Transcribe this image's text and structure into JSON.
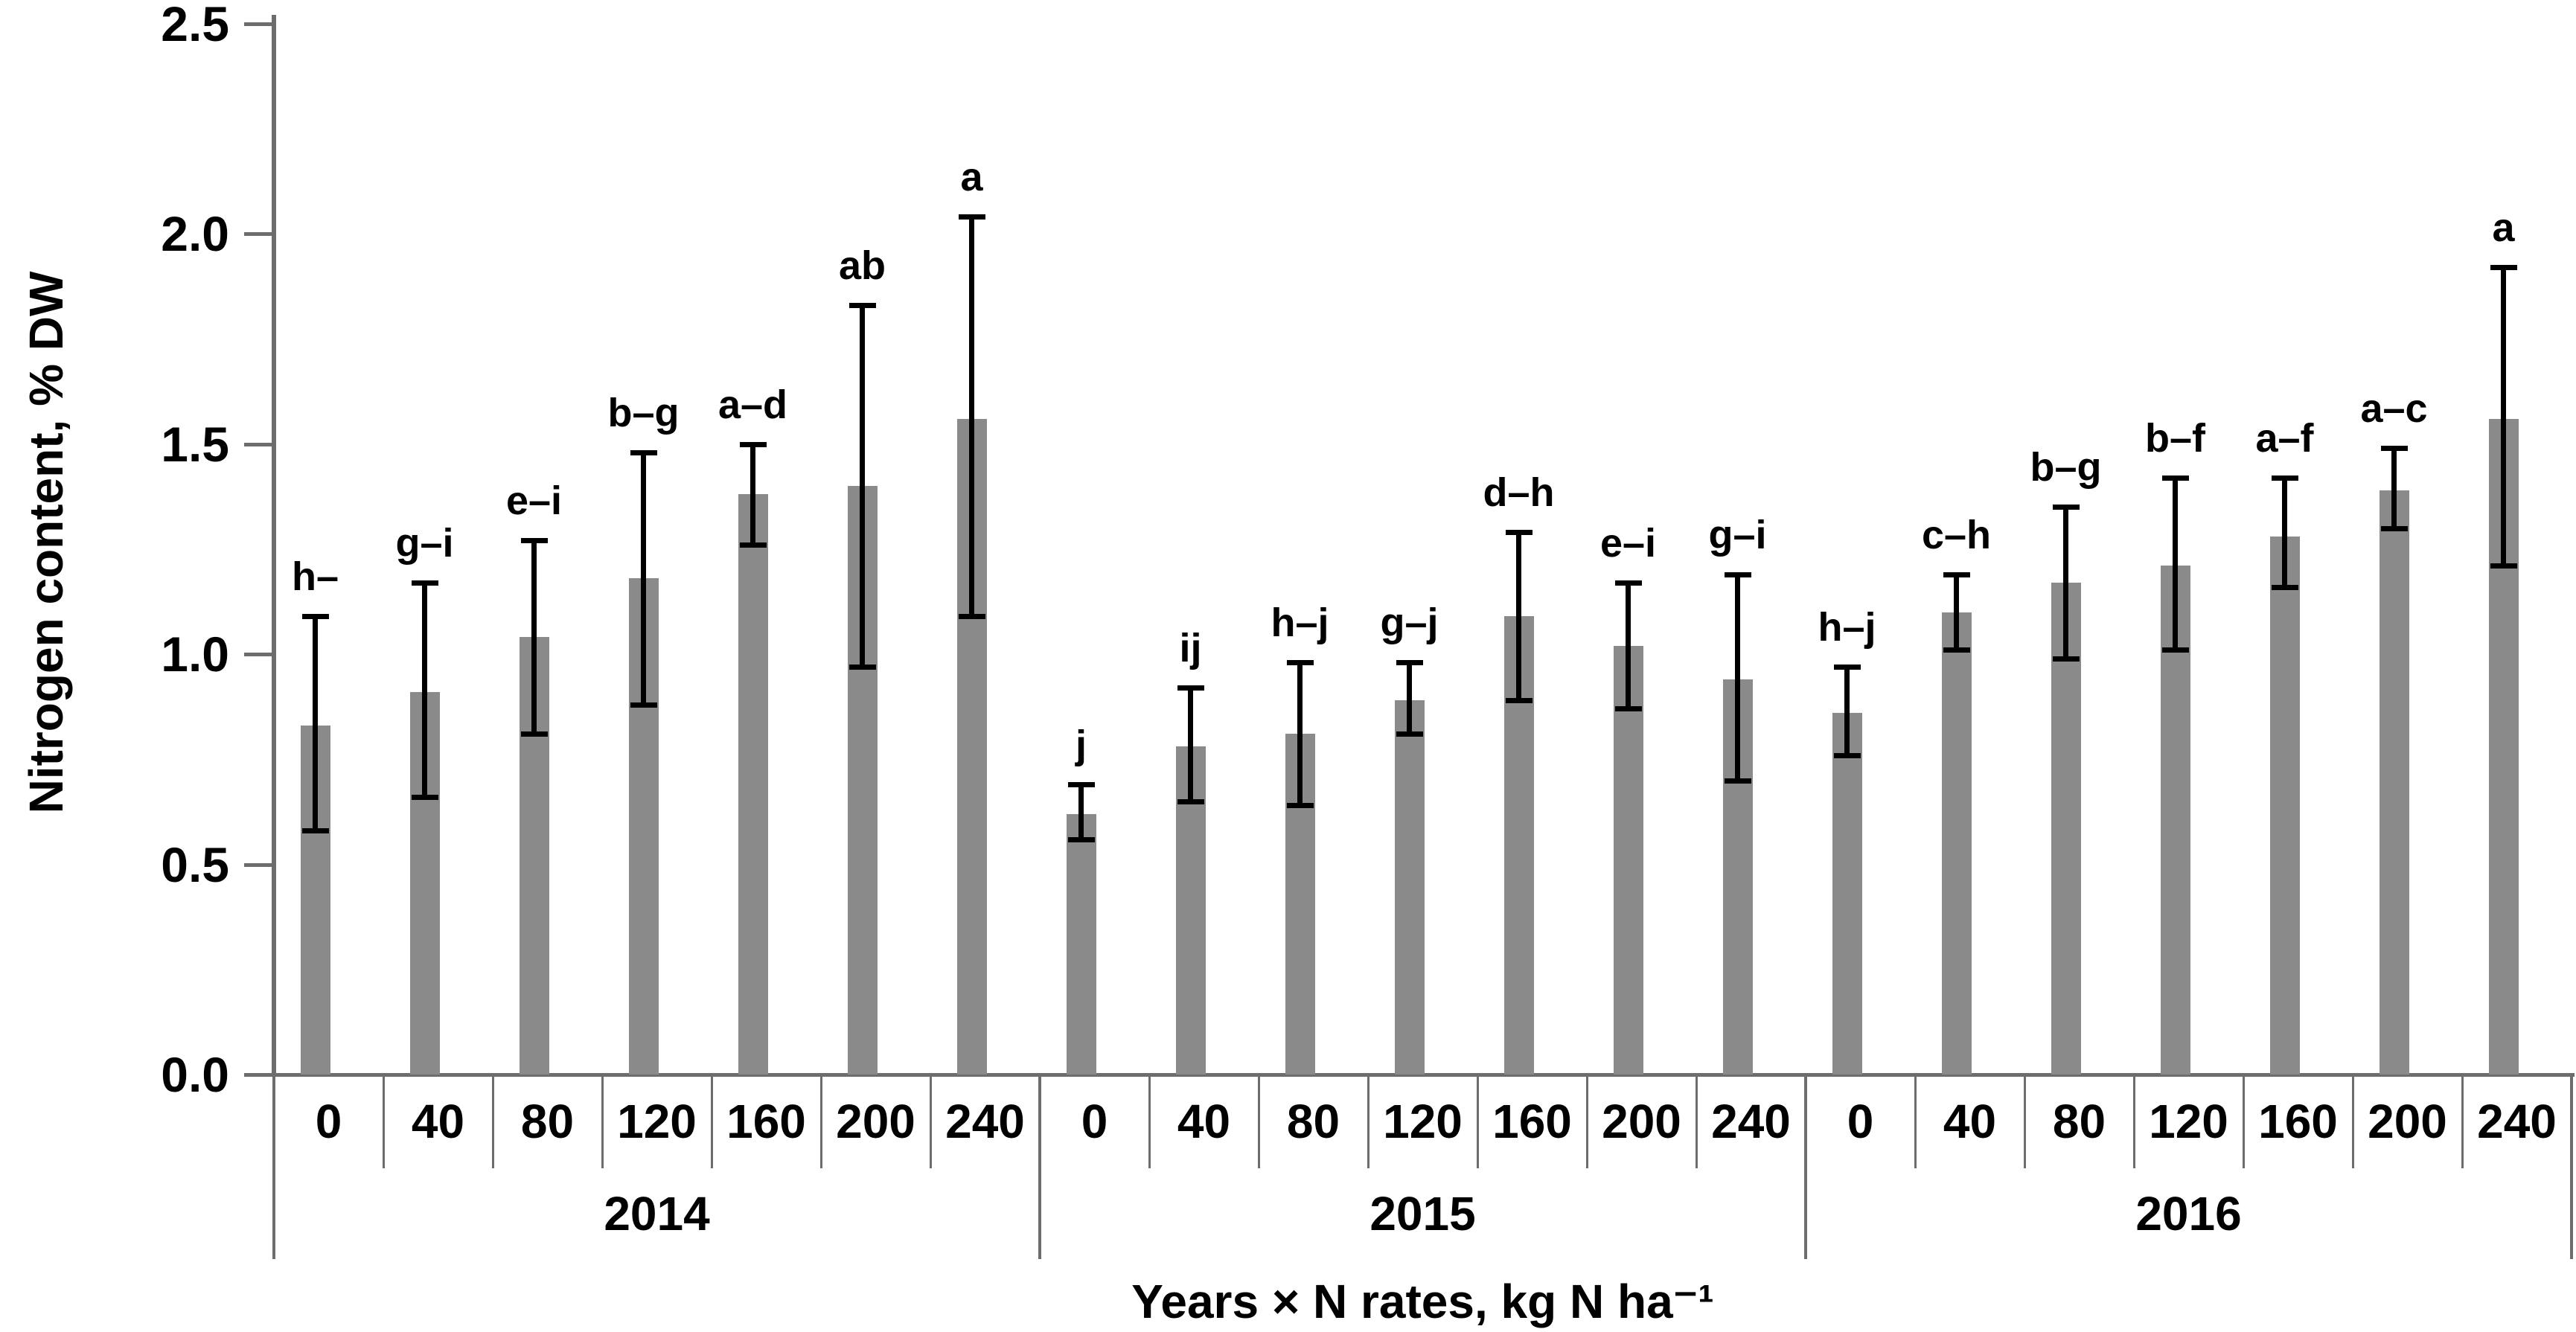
{
  "figure": {
    "background": "#ffffff",
    "bar_color": "#8a8a8a",
    "axis_color": "#6d6d6d",
    "error_bar_color": "#000000",
    "text_color": "#000000"
  },
  "y_axis": {
    "title": "Nitrogen content, % DW",
    "tick_labels": [
      "0.0",
      "0.5",
      "1.0",
      "1.5",
      "2.0",
      "2.5"
    ],
    "min": 0.0,
    "max": 2.5,
    "step": 0.5
  },
  "x_axis": {
    "title": "Years × N rates, kg N ha⁻¹",
    "rate_labels": [
      "0",
      "40",
      "80",
      "120",
      "160",
      "200",
      "240"
    ],
    "year_labels": [
      "2014",
      "2015",
      "2016"
    ]
  },
  "chart_data": {
    "type": "bar",
    "title": "",
    "xlabel": "Years × N rates, kg N ha⁻¹",
    "ylabel": "Nitrogen content, % DW",
    "ylim": [
      0.0,
      2.5
    ],
    "grid": false,
    "legend": false,
    "error_bars": true,
    "categories": [
      0,
      40,
      80,
      120,
      160,
      200,
      240
    ],
    "groups": [
      {
        "year": "2014",
        "values": [
          0.83,
          0.91,
          1.04,
          1.18,
          1.38,
          1.4,
          1.56
        ],
        "err_up": [
          0.26,
          0.26,
          0.23,
          0.3,
          0.12,
          0.43,
          0.48
        ],
        "err_down": [
          0.25,
          0.25,
          0.23,
          0.3,
          0.12,
          0.43,
          0.47
        ],
        "letters": [
          "h–",
          "g–i",
          "e–i",
          "b–g",
          "a–d",
          "ab",
          "a"
        ]
      },
      {
        "year": "2015",
        "values": [
          0.62,
          0.78,
          0.81,
          0.89,
          1.09,
          1.02,
          0.94
        ],
        "err_up": [
          0.07,
          0.14,
          0.17,
          0.09,
          0.2,
          0.15,
          0.25
        ],
        "err_down": [
          0.06,
          0.13,
          0.17,
          0.08,
          0.2,
          0.15,
          0.24
        ],
        "letters": [
          "j",
          "ij",
          "h–j",
          "g–j",
          "d–h",
          "e–i",
          "g–i"
        ]
      },
      {
        "year": "2016",
        "values": [
          0.86,
          1.1,
          1.17,
          1.21,
          1.28,
          1.39,
          1.56
        ],
        "err_up": [
          0.11,
          0.09,
          0.18,
          0.21,
          0.14,
          0.1,
          0.36
        ],
        "err_down": [
          0.1,
          0.09,
          0.18,
          0.2,
          0.12,
          0.09,
          0.35
        ],
        "letters": [
          "h–j",
          "c–h",
          "b–g",
          "b–f",
          "a–f",
          "a–c",
          "a"
        ]
      }
    ]
  }
}
